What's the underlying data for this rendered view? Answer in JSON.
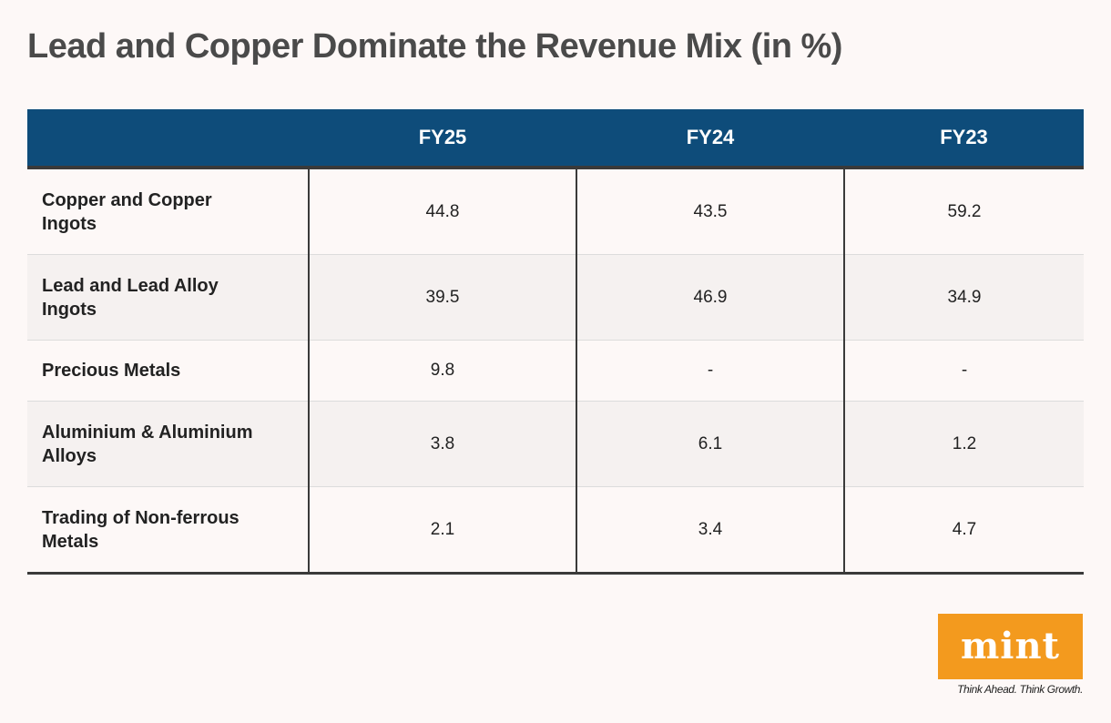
{
  "title": "Lead and Copper Dominate the Revenue Mix (in %)",
  "chart_data": {
    "type": "table",
    "title": "Lead and Copper Dominate the Revenue Mix (in %)",
    "columns": [
      "",
      "FY25",
      "FY24",
      "FY23"
    ],
    "rows": [
      {
        "label": "Copper and Copper Ingots",
        "values": [
          "44.8",
          "43.5",
          "59.2"
        ]
      },
      {
        "label": "Lead and Lead Alloy Ingots",
        "values": [
          "39.5",
          "46.9",
          "34.9"
        ]
      },
      {
        "label": "Precious Metals",
        "values": [
          "9.8",
          "-",
          "-"
        ]
      },
      {
        "label": "Aluminium & Aluminium Alloys",
        "values": [
          "3.8",
          "6.1",
          "1.2"
        ]
      },
      {
        "label": "Trading of Non-ferrous Metals",
        "values": [
          "2.1",
          "3.4",
          "4.7"
        ]
      }
    ]
  },
  "branding": {
    "logo_text": "mint",
    "tagline": "Think Ahead. Think Growth.",
    "logo_color": "#f39a1e"
  },
  "colors": {
    "header_bg": "#0e4c7a",
    "background": "#fdf8f7",
    "alt_row_bg": "#f5f1f0"
  }
}
